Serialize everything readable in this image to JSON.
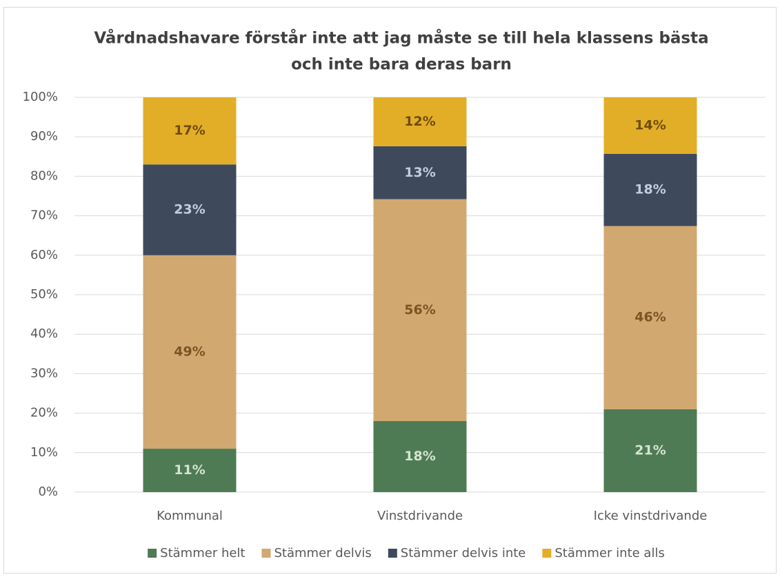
{
  "chart_data": {
    "type": "stacked_bar",
    "title": [
      "Vårdnadshavare förstår inte att jag måste se till hela klassens bästa",
      "och inte bara deras barn"
    ],
    "categories": [
      "Kommunal",
      "Vinstdrivande",
      "Icke vinstdrivande"
    ],
    "series": [
      {
        "name": "Stämmer helt",
        "color": "#4e7b53",
        "label_color": "#d6e4d2",
        "values": [
          11,
          18,
          21
        ],
        "value_labels": [
          "11%",
          "18%",
          "21%"
        ]
      },
      {
        "name": "Stämmer delvis",
        "color": "#d2a871",
        "label_color": "#7a5523",
        "values": [
          49,
          56.2,
          46.4
        ],
        "value_labels": [
          "49%",
          "56%",
          "46%"
        ]
      },
      {
        "name": "Stämmer delvis inte",
        "color": "#3e4a5c",
        "label_color": "#c3cedd",
        "values": [
          23,
          13.4,
          18.3
        ],
        "value_labels": [
          "23%",
          "13%",
          "18%"
        ]
      },
      {
        "name": "Stämmer inte alls",
        "color": "#e3ae27",
        "label_color": "#6e4c10",
        "values": [
          17,
          12.4,
          14.3
        ],
        "value_labels": [
          "17%",
          "12%",
          "14%"
        ]
      }
    ],
    "ylim": [
      0,
      100
    ],
    "yticks": [
      {
        "value": 0,
        "label": "0%"
      },
      {
        "value": 10,
        "label": "10%"
      },
      {
        "value": 20,
        "label": "20%"
      },
      {
        "value": 30,
        "label": "30%"
      },
      {
        "value": 40,
        "label": "40%"
      },
      {
        "value": 50,
        "label": "50%"
      },
      {
        "value": 60,
        "label": "60%"
      },
      {
        "value": 70,
        "label": "70%"
      },
      {
        "value": 80,
        "label": "80%"
      },
      {
        "value": 90,
        "label": "90%"
      },
      {
        "value": 100,
        "label": "100%"
      }
    ],
    "grid": true,
    "legend": "bottom"
  }
}
